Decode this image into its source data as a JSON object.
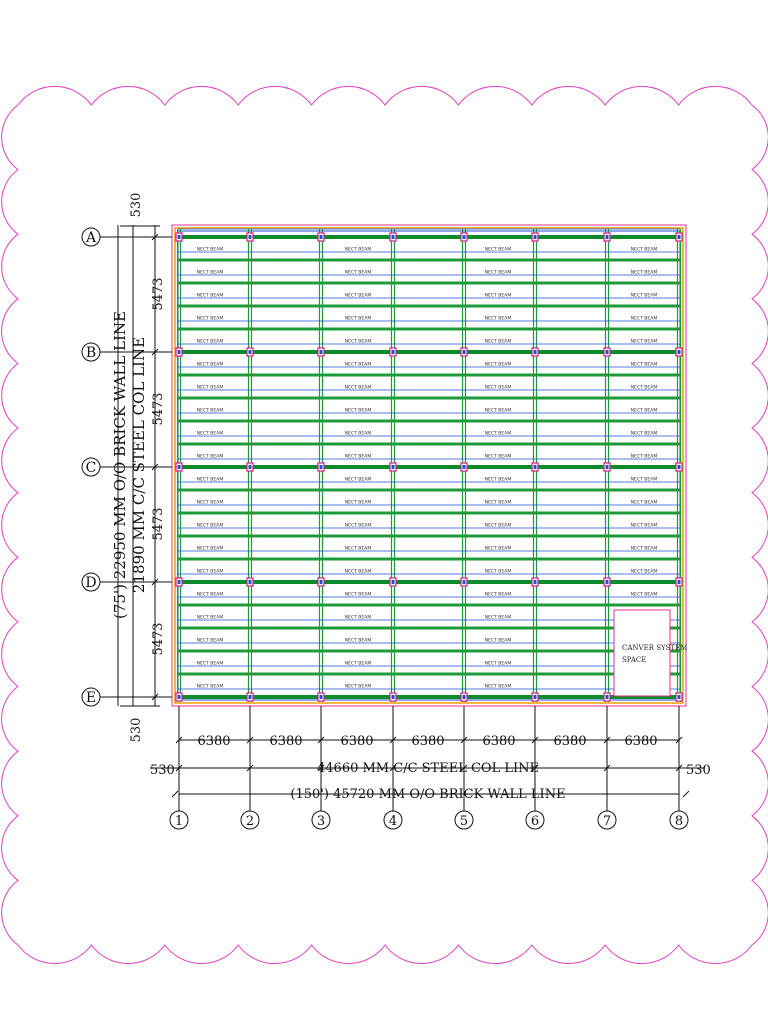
{
  "drawing": {
    "row_labels": [
      "A",
      "B",
      "C",
      "D",
      "E"
    ],
    "col_labels": [
      "1",
      "2",
      "3",
      "4",
      "5",
      "6",
      "7",
      "8"
    ],
    "bay_width_labels": [
      "6380",
      "6380",
      "6380",
      "6380",
      "6380",
      "6380",
      "6380"
    ],
    "bay_height_labels": [
      "5473",
      "5473",
      "5473",
      "5473"
    ],
    "top_offset": "530",
    "bottom_offset": "530",
    "left_offset": "530",
    "right_offset": "530",
    "horizontal_steel_label": "44660 MM C/C STEEL COL LINE",
    "horizontal_brick_label": "(150') 45720 MM O/O BRICK WALL LINE",
    "vertical_brick_label": "(75') 22950 MM O/O BRICK WALL LINE",
    "vertical_steel_label": "21890 MM C/C STEEL COL LINE",
    "beam_label": "NECT BEAM",
    "canvas_label_line1": "CANVER SYSTEM",
    "canvas_label_line2": "SPACE",
    "colors": {
      "cloud": "#e040c0",
      "beam": "#1f9a3a",
      "girder": "#0d8a2a",
      "blue_line": "#1f4fd8",
      "orange_line": "#f0a000",
      "pink_line": "#e0308f",
      "column": "#d0208a"
    }
  }
}
